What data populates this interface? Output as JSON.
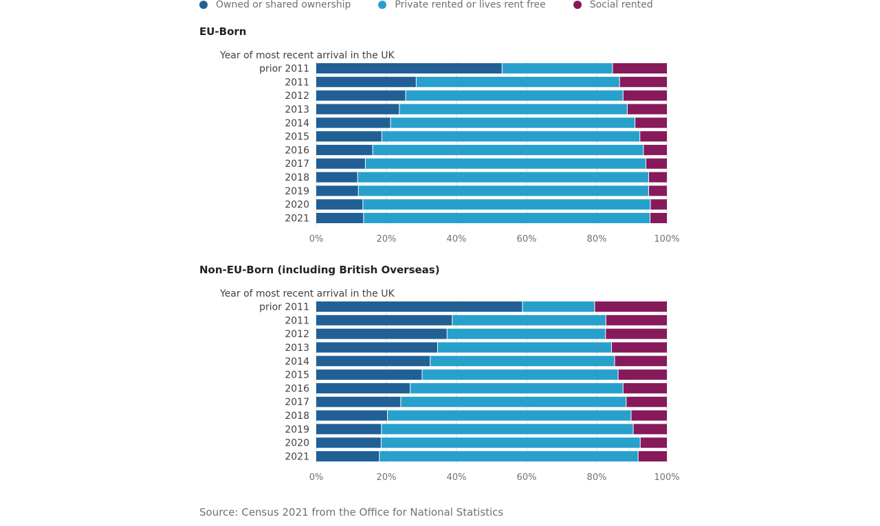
{
  "legend": [
    {
      "label": "Owned or shared ownership",
      "color": "#206095"
    },
    {
      "label": "Private rented or lives rent free",
      "color": "#27a0cc"
    },
    {
      "label": "Social rented",
      "color": "#871a5b"
    }
  ],
  "source": "Source: Census 2021 from the Office for National Statistics",
  "chart_data": [
    {
      "type": "bar",
      "orientation": "horizontal",
      "stacked": true,
      "title": "EU-Born",
      "ylabel": "Year of most recent arrival in the UK",
      "categories": [
        "prior 2011",
        "2011",
        "2012",
        "2013",
        "2014",
        "2015",
        "2016",
        "2017",
        "2018",
        "2019",
        "2020",
        "2021"
      ],
      "series": [
        {
          "name": "Owned or shared ownership",
          "color": "#206095",
          "values": [
            53,
            28.5,
            25.5,
            23.7,
            21.2,
            18.7,
            16.1,
            14,
            11.8,
            12,
            13.3,
            13.5
          ]
        },
        {
          "name": "Private rented or lives rent free",
          "color": "#27a0cc",
          "values": [
            31.5,
            58,
            62,
            65,
            69.7,
            73.6,
            77.2,
            80,
            83,
            82.8,
            82,
            81.7
          ]
        },
        {
          "name": "Social rented",
          "color": "#871a5b",
          "values": [
            15.5,
            13.5,
            12.5,
            11.3,
            9.1,
            7.7,
            6.7,
            6,
            5.2,
            5.2,
            4.7,
            4.8
          ]
        }
      ],
      "xlim": [
        0,
        100
      ],
      "xticks": [
        "0%",
        "20%",
        "40%",
        "60%",
        "80%",
        "100%"
      ],
      "grid": true
    },
    {
      "type": "bar",
      "orientation": "horizontal",
      "stacked": true,
      "title": "Non-EU-Born (including British Overseas)",
      "ylabel": "Year of most recent arrival in the UK",
      "categories": [
        "prior 2011",
        "2011",
        "2012",
        "2013",
        "2014",
        "2015",
        "2016",
        "2017",
        "2018",
        "2019",
        "2020",
        "2021"
      ],
      "series": [
        {
          "name": "Owned or shared ownership",
          "color": "#206095",
          "values": [
            58.8,
            38.8,
            37.3,
            34.6,
            32.5,
            30.2,
            26.8,
            24.1,
            20.3,
            18.6,
            18.5,
            18
          ]
        },
        {
          "name": "Private rented or lives rent free",
          "color": "#27a0cc",
          "values": [
            20.6,
            43.8,
            45.2,
            49.6,
            52.6,
            55.9,
            60.7,
            64.3,
            69.5,
            71.8,
            73.9,
            73.8
          ]
        },
        {
          "name": "Social rented",
          "color": "#871a5b",
          "values": [
            20.6,
            17.4,
            17.5,
            15.8,
            14.9,
            13.9,
            12.5,
            11.6,
            10.2,
            9.6,
            7.6,
            8.2
          ]
        }
      ],
      "xlim": [
        0,
        100
      ],
      "xticks": [
        "0%",
        "20%",
        "40%",
        "60%",
        "80%",
        "100%"
      ],
      "grid": true
    }
  ]
}
